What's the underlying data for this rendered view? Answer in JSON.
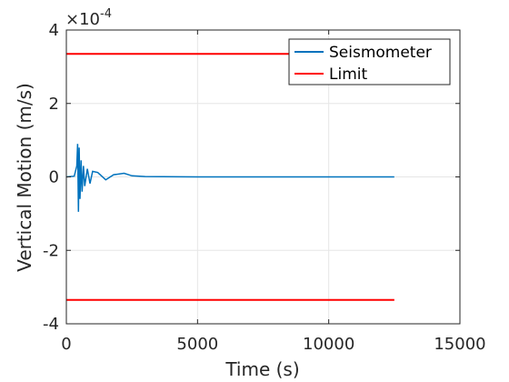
{
  "chart_data": {
    "type": "line",
    "xlabel": "Time (s)",
    "ylabel": "Vertical Motion (m/s)",
    "exponent_label": "×10",
    "exponent_power": "-4",
    "xlim": [
      0,
      15000
    ],
    "ylim": [
      -4,
      4
    ],
    "x_ticks": [
      0,
      5000,
      10000,
      15000
    ],
    "x_tick_labels": [
      "0",
      "5000",
      "10000",
      "15000"
    ],
    "y_ticks": [
      -4,
      -2,
      0,
      2,
      4
    ],
    "y_tick_labels": [
      "-4",
      "-2",
      "0",
      "2",
      "4"
    ],
    "y_units_scale": "1e-4",
    "grid": true,
    "legend_placement": "top-right",
    "series": [
      {
        "name": "Seismometer",
        "color": "#0072BD",
        "x": [
          0,
          300,
          400,
          430,
          460,
          490,
          520,
          560,
          600,
          650,
          700,
          800,
          900,
          1000,
          1200,
          1500,
          1800,
          2200,
          2500,
          3000,
          5000,
          8000,
          12500
        ],
        "y": [
          0,
          0.02,
          0.3,
          0.9,
          -0.95,
          0.8,
          -0.6,
          0.45,
          -0.4,
          0.3,
          -0.25,
          0.22,
          -0.18,
          0.15,
          0.12,
          -0.08,
          0.06,
          0.1,
          0.03,
          0.01,
          0.0,
          0.0,
          0.0
        ]
      },
      {
        "name": "Limit",
        "color": "#FF0000",
        "x": [
          0,
          12500
        ],
        "y_upper": 3.35,
        "y_lower": -3.35
      }
    ]
  }
}
